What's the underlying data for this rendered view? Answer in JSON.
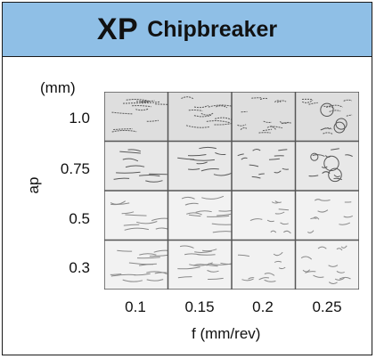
{
  "header": {
    "title_main": "XP",
    "title_sub": "Chipbreaker",
    "background": "#8fbfe6"
  },
  "axes": {
    "y_unit": "(mm)",
    "y_label": "ap",
    "x_label": "f (mm/rev)",
    "y_values": [
      "1.0",
      "0.75",
      "0.5",
      "0.3"
    ],
    "x_values": [
      "0.1",
      "0.15",
      "0.2",
      "0.25"
    ]
  },
  "grid": {
    "rows": 4,
    "cols": 4,
    "cell_content": "chip-shape-photo",
    "line_color": "#555555"
  }
}
